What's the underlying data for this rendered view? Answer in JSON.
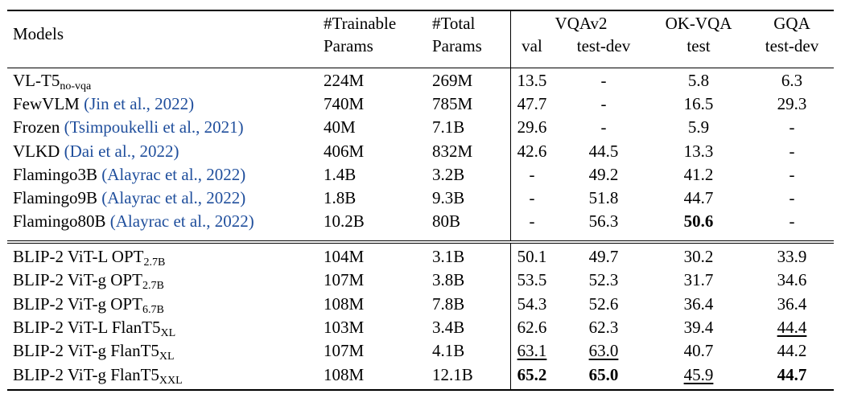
{
  "table": {
    "header": {
      "models": "Models",
      "trainable_params": [
        "#Trainable",
        "Params"
      ],
      "total_params": [
        "#Total",
        "Params"
      ],
      "vqav2": "VQAv2",
      "vqav2_val": "val",
      "vqav2_testdev": "test-dev",
      "okvqa": "OK-VQA",
      "okvqa_test": "test",
      "gqa": "GQA",
      "gqa_testdev": "test-dev"
    },
    "group1": [
      {
        "model": "VL-T5",
        "sub": "no-vqa",
        "cite": "",
        "trainable": "224M",
        "total": "269M",
        "vqa_val": "13.5",
        "vqa_testdev": "-",
        "okvqa": "5.8",
        "gqa": "6.3"
      },
      {
        "model": "FewVLM",
        "sub": "",
        "cite": "(Jin et al., 2022)",
        "trainable": "740M",
        "total": "785M",
        "vqa_val": "47.7",
        "vqa_testdev": "-",
        "okvqa": "16.5",
        "gqa": "29.3"
      },
      {
        "model": "Frozen",
        "sub": "",
        "cite": "(Tsimpoukelli et al., 2021)",
        "trainable": "40M",
        "total": "7.1B",
        "vqa_val": "29.6",
        "vqa_testdev": "-",
        "okvqa": "5.9",
        "gqa": "-"
      },
      {
        "model": "VLKD",
        "sub": "",
        "cite": "(Dai et al., 2022)",
        "trainable": "406M",
        "total": "832M",
        "vqa_val": "42.6",
        "vqa_testdev": "44.5",
        "okvqa": "13.3",
        "gqa": "-"
      },
      {
        "model": "Flamingo3B",
        "sub": "",
        "cite": "(Alayrac et al., 2022)",
        "trainable": "1.4B",
        "total": "3.2B",
        "vqa_val": "-",
        "vqa_testdev": "49.2",
        "okvqa": "41.2",
        "gqa": "-"
      },
      {
        "model": "Flamingo9B",
        "sub": "",
        "cite": "(Alayrac et al., 2022)",
        "trainable": "1.8B",
        "total": "9.3B",
        "vqa_val": "-",
        "vqa_testdev": "51.8",
        "okvqa": "44.7",
        "gqa": "-"
      },
      {
        "model": "Flamingo80B",
        "sub": "",
        "cite": "(Alayrac et al., 2022)",
        "trainable": "10.2B",
        "total": "80B",
        "vqa_val": "-",
        "vqa_testdev": "56.3",
        "okvqa": "50.6",
        "gqa": "-",
        "bold": [
          "okvqa"
        ]
      }
    ],
    "group2": [
      {
        "model": "BLIP-2 ViT-L OPT",
        "sub": "2.7B",
        "cite": "",
        "trainable": "104M",
        "total": "3.1B",
        "vqa_val": "50.1",
        "vqa_testdev": "49.7",
        "okvqa": "30.2",
        "gqa": "33.9"
      },
      {
        "model": "BLIP-2 ViT-g OPT",
        "sub": "2.7B",
        "cite": "",
        "trainable": "107M",
        "total": "3.8B",
        "vqa_val": "53.5",
        "vqa_testdev": "52.3",
        "okvqa": "31.7",
        "gqa": "34.6"
      },
      {
        "model": "BLIP-2 ViT-g OPT",
        "sub": "6.7B",
        "cite": "",
        "trainable": "108M",
        "total": "7.8B",
        "vqa_val": "54.3",
        "vqa_testdev": "52.6",
        "okvqa": "36.4",
        "gqa": "36.4"
      },
      {
        "model": "BLIP-2 ViT-L FlanT5",
        "sub": "XL",
        "cite": "",
        "trainable": "103M",
        "total": "3.4B",
        "vqa_val": "62.6",
        "vqa_testdev": "62.3",
        "okvqa": "39.4",
        "gqa": "44.4",
        "underline": [
          "gqa"
        ]
      },
      {
        "model": "BLIP-2 ViT-g FlanT5",
        "sub": "XL",
        "cite": "",
        "trainable": "107M",
        "total": "4.1B",
        "vqa_val": "63.1",
        "vqa_testdev": "63.0",
        "okvqa": "40.7",
        "gqa": "44.2",
        "underline": [
          "vqa_val",
          "vqa_testdev"
        ]
      },
      {
        "model": "BLIP-2 ViT-g FlanT5",
        "sub": "XXL",
        "cite": "",
        "trainable": "108M",
        "total": "12.1B",
        "vqa_val": "65.2",
        "vqa_testdev": "65.0",
        "okvqa": "45.9",
        "gqa": "44.7",
        "bold": [
          "vqa_val",
          "vqa_testdev",
          "gqa"
        ],
        "underline": [
          "okvqa"
        ]
      }
    ]
  }
}
